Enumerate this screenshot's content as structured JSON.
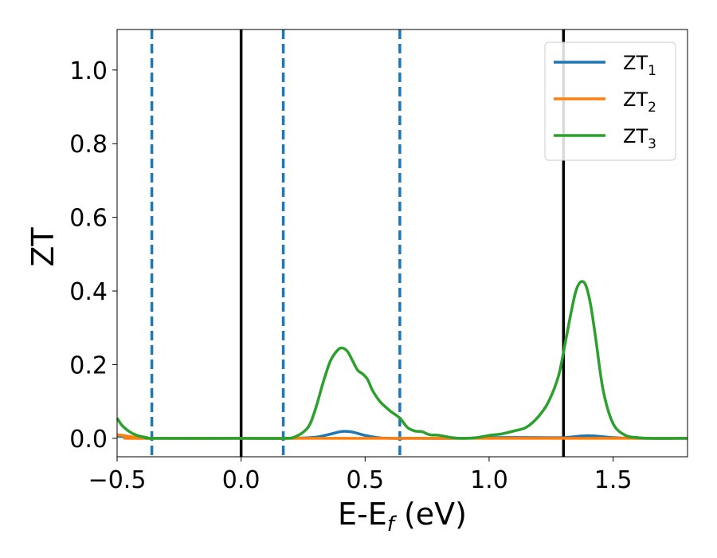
{
  "chart_data": {
    "type": "line",
    "title": "",
    "xlabel": {
      "main": "E-E",
      "sub": "f",
      "unit": " (eV)"
    },
    "ylabel": "ZT",
    "xlim": [
      -0.5,
      1.8
    ],
    "ylim": [
      -0.05,
      1.11
    ],
    "xticks": [
      -0.5,
      0.0,
      0.5,
      1.0,
      1.5
    ],
    "xtick_labels": [
      "−0.5",
      "0.0",
      "0.5",
      "1.0",
      "1.5"
    ],
    "yticks": [
      0.0,
      0.2,
      0.4,
      0.6,
      0.8,
      1.0
    ],
    "ytick_labels": [
      "0.0",
      "0.2",
      "0.4",
      "0.6",
      "0.8",
      "1.0"
    ],
    "grid": false,
    "legend_position": "top-right",
    "vlines": [
      {
        "x": -0.36,
        "style": "dashed",
        "color": "#1f77b4"
      },
      {
        "x": 0.0,
        "style": "solid",
        "color": "#000000"
      },
      {
        "x": 0.17,
        "style": "dashed",
        "color": "#1f77b4"
      },
      {
        "x": 0.64,
        "style": "dashed",
        "color": "#1f77b4"
      },
      {
        "x": 1.3,
        "style": "solid",
        "color": "#000000"
      }
    ],
    "series": [
      {
        "name": "ZT",
        "subscript": "1",
        "color": "#1f77b4",
        "x": [
          -0.5,
          -0.45,
          -0.4,
          -0.35,
          0.0,
          0.2,
          0.3,
          0.35,
          0.4,
          0.42,
          0.45,
          0.5,
          0.55,
          0.6,
          0.7,
          0.9,
          1.0,
          1.2,
          1.3,
          1.4,
          1.5,
          1.6,
          1.8
        ],
        "y": [
          0.006,
          0.003,
          0.001,
          0.0,
          0.0,
          0.0,
          0.003,
          0.01,
          0.018,
          0.019,
          0.017,
          0.008,
          0.002,
          0.0,
          0.0,
          0.0,
          0.002,
          0.002,
          0.002,
          0.007,
          0.002,
          0.0,
          0.0
        ]
      },
      {
        "name": "ZT",
        "subscript": "2",
        "color": "#ff7f0e",
        "x": [
          -0.5,
          -0.45,
          -0.4,
          -0.35,
          -0.3,
          1.8
        ],
        "y": [
          0.01,
          0.005,
          0.002,
          0.0,
          0.0,
          0.0
        ]
      },
      {
        "name": "ZT",
        "subscript": "3",
        "color": "#2ca02c",
        "x": [
          -0.5,
          -0.48,
          -0.45,
          -0.42,
          -0.38,
          -0.35,
          0.0,
          0.17,
          0.22,
          0.27,
          0.3,
          0.33,
          0.36,
          0.39,
          0.41,
          0.43,
          0.45,
          0.47,
          0.49,
          0.51,
          0.53,
          0.56,
          0.6,
          0.64,
          0.67,
          0.7,
          0.73,
          0.76,
          0.8,
          0.85,
          0.9,
          0.95,
          1.0,
          1.05,
          1.1,
          1.15,
          1.2,
          1.24,
          1.28,
          1.31,
          1.33,
          1.35,
          1.37,
          1.39,
          1.41,
          1.43,
          1.46,
          1.5,
          1.55,
          1.6,
          1.65,
          1.8
        ],
        "y": [
          0.055,
          0.035,
          0.018,
          0.008,
          0.002,
          0.0,
          0.0,
          0.0,
          0.005,
          0.03,
          0.08,
          0.15,
          0.21,
          0.24,
          0.245,
          0.235,
          0.21,
          0.185,
          0.175,
          0.16,
          0.13,
          0.1,
          0.075,
          0.055,
          0.03,
          0.02,
          0.018,
          0.01,
          0.008,
          0.002,
          0.0,
          0.002,
          0.008,
          0.012,
          0.02,
          0.03,
          0.06,
          0.1,
          0.17,
          0.27,
          0.34,
          0.4,
          0.425,
          0.415,
          0.36,
          0.27,
          0.13,
          0.04,
          0.008,
          0.002,
          0.0,
          0.0
        ]
      }
    ]
  }
}
